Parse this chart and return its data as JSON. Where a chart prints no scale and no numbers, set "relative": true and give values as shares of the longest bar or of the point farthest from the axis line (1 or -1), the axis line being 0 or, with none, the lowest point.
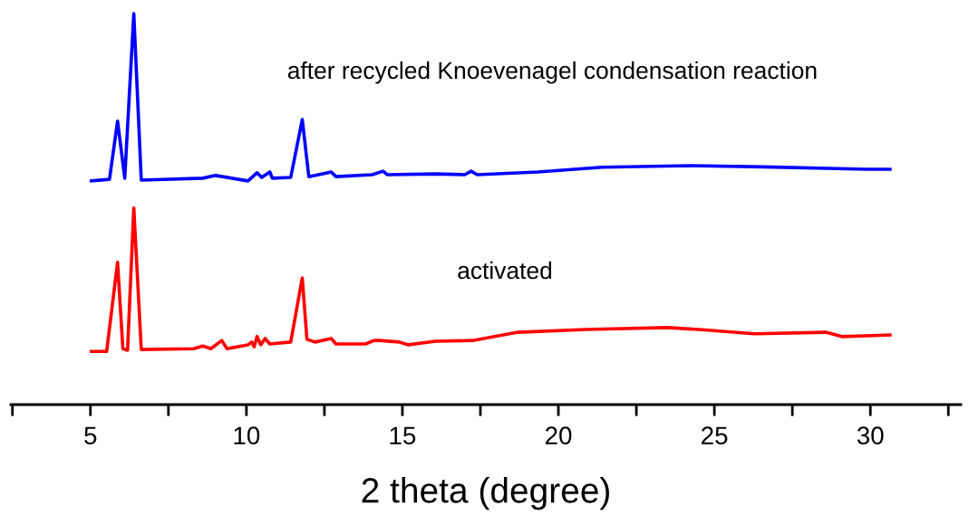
{
  "chart_data": {
    "type": "line",
    "relative": true,
    "xlabel": "2 theta (degree)",
    "xlim": [
      2.45,
      32.9
    ],
    "xticks": [
      {
        "value": 2.5,
        "label": null
      },
      5,
      {
        "value": 7.5,
        "label": null
      },
      10,
      {
        "value": 12.5,
        "label": null
      },
      15,
      {
        "value": 17.5,
        "label": null
      },
      20,
      {
        "value": 22.5,
        "label": null
      },
      25,
      {
        "value": 27.5,
        "label": null
      },
      30,
      {
        "value": 32.5,
        "label": null
      }
    ],
    "grid": false,
    "legend": false,
    "marker": "none",
    "line_style": "solid",
    "series": [
      {
        "name": "after recycled Knoevenagel condensation reaction",
        "color": "#0000ff",
        "x": [
          5.03,
          5.61,
          5.87,
          6.1,
          6.39,
          6.63,
          8.6,
          9.01,
          10.05,
          10.34,
          10.49,
          10.75,
          10.83,
          11.42,
          11.79,
          12.0,
          12.72,
          12.87,
          14.03,
          14.38,
          14.52,
          16.06,
          17.0,
          17.2,
          17.4,
          19.34,
          21.4,
          24.22,
          26.6,
          29.9,
          30.63
        ],
        "values": [
          0.572,
          0.576,
          0.725,
          0.579,
          1.0,
          0.574,
          0.579,
          0.586,
          0.572,
          0.593,
          0.581,
          0.595,
          0.579,
          0.581,
          0.729,
          0.583,
          0.595,
          0.583,
          0.588,
          0.597,
          0.588,
          0.59,
          0.588,
          0.597,
          0.588,
          0.595,
          0.607,
          0.611,
          0.608,
          0.602,
          0.602
        ]
      },
      {
        "name": "activated",
        "color": "#ff0000",
        "x": [
          5.03,
          5.52,
          5.87,
          6.04,
          6.19,
          6.39,
          6.63,
          8.31,
          8.6,
          8.86,
          9.21,
          9.38,
          10.05,
          10.17,
          10.25,
          10.34,
          10.46,
          10.6,
          10.75,
          11.42,
          11.79,
          11.94,
          12.2,
          12.72,
          12.87,
          13.82,
          14.09,
          14.26,
          14.9,
          15.19,
          16.06,
          17.25,
          18.7,
          20.88,
          23.49,
          24.51,
          26.28,
          28.57,
          29.09,
          30.63
        ],
        "values": [
          0.136,
          0.136,
          0.364,
          0.143,
          0.139,
          0.503,
          0.141,
          0.143,
          0.15,
          0.143,
          0.164,
          0.143,
          0.153,
          0.16,
          0.148,
          0.174,
          0.153,
          0.169,
          0.155,
          0.16,
          0.324,
          0.167,
          0.16,
          0.169,
          0.155,
          0.155,
          0.164,
          0.164,
          0.16,
          0.153,
          0.162,
          0.164,
          0.185,
          0.192,
          0.197,
          0.192,
          0.181,
          0.185,
          0.174,
          0.178
        ]
      }
    ]
  }
}
